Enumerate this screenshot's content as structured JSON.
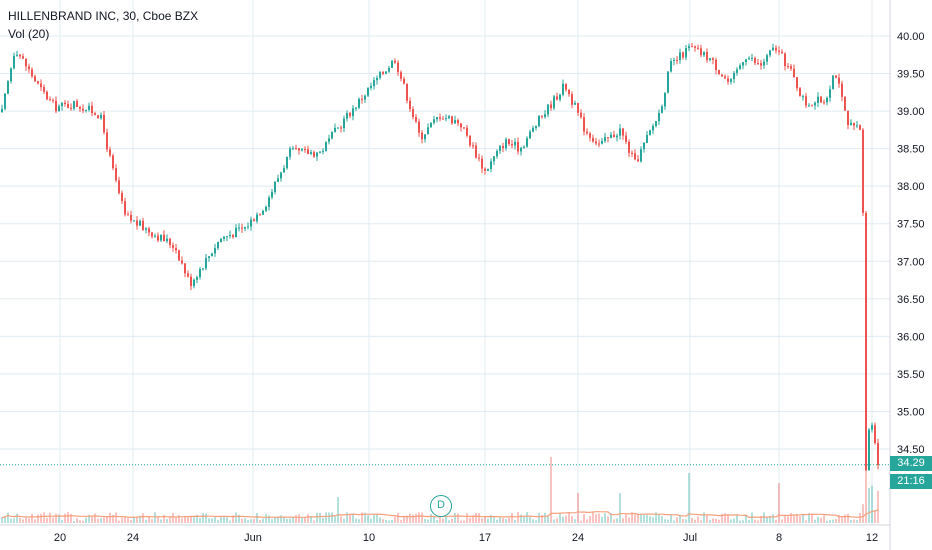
{
  "chart_data": {
    "type": "candlestick",
    "symbol": "HILLENBRAND INC",
    "interval": "30",
    "exchange": "Cboe BZX",
    "volume_indicator": "Vol (20)",
    "y_ticks": [
      "35.00",
      "35.50",
      "36.00",
      "36.50",
      "37.00",
      "37.50",
      "38.00",
      "38.50",
      "39.00",
      "39.50",
      "40.00",
      "34.50"
    ],
    "y_tick_values": [
      35.0,
      35.5,
      36.0,
      36.5,
      37.0,
      37.5,
      38.0,
      38.5,
      39.0,
      39.5,
      40.0,
      34.5
    ],
    "x_ticks": [
      "20",
      "24",
      "Jun",
      "10",
      "17",
      "24",
      "Jul",
      "8",
      "12"
    ],
    "last_price": "34.29",
    "last_price_value": 34.29,
    "countdown": "21:16",
    "dividend_marker": "D",
    "grid": true,
    "colors": {
      "up": "#26a69a",
      "down": "#ef5350",
      "grid": "#e1ecf2",
      "vol_ma": "#f5a07a"
    },
    "anchors": [
      [
        0,
        38.85
      ],
      [
        15,
        39.85
      ],
      [
        40,
        39.3
      ],
      [
        55,
        39.05
      ],
      [
        75,
        39.1
      ],
      [
        100,
        38.95
      ],
      [
        112,
        38.25
      ],
      [
        125,
        37.6
      ],
      [
        150,
        37.4
      ],
      [
        175,
        37.2
      ],
      [
        190,
        36.7
      ],
      [
        205,
        37.0
      ],
      [
        220,
        37.3
      ],
      [
        245,
        37.45
      ],
      [
        265,
        37.75
      ],
      [
        290,
        38.45
      ],
      [
        320,
        38.45
      ],
      [
        345,
        38.9
      ],
      [
        372,
        39.35
      ],
      [
        395,
        39.7
      ],
      [
        420,
        38.65
      ],
      [
        440,
        38.95
      ],
      [
        460,
        38.85
      ],
      [
        485,
        38.2
      ],
      [
        505,
        38.6
      ],
      [
        520,
        38.5
      ],
      [
        540,
        38.9
      ],
      [
        565,
        39.35
      ],
      [
        585,
        38.75
      ],
      [
        600,
        38.55
      ],
      [
        620,
        38.75
      ],
      [
        635,
        38.3
      ],
      [
        660,
        39.0
      ],
      [
        670,
        39.6
      ],
      [
        690,
        39.85
      ],
      [
        710,
        39.7
      ],
      [
        730,
        39.35
      ],
      [
        745,
        39.75
      ],
      [
        760,
        39.6
      ],
      [
        775,
        39.85
      ],
      [
        790,
        39.55
      ],
      [
        805,
        39.1
      ],
      [
        825,
        39.15
      ],
      [
        835,
        39.55
      ],
      [
        848,
        38.8
      ],
      [
        862,
        38.75
      ],
      [
        866,
        34.25
      ],
      [
        870,
        34.9
      ],
      [
        874,
        34.7
      ],
      [
        878,
        34.3
      ]
    ],
    "volume_spikes": [
      [
        337,
        26
      ],
      [
        552,
        66
      ],
      [
        577,
        30
      ],
      [
        620,
        30
      ],
      [
        690,
        50
      ],
      [
        780,
        40
      ],
      [
        865,
        55
      ],
      [
        870,
        35
      ]
    ]
  }
}
